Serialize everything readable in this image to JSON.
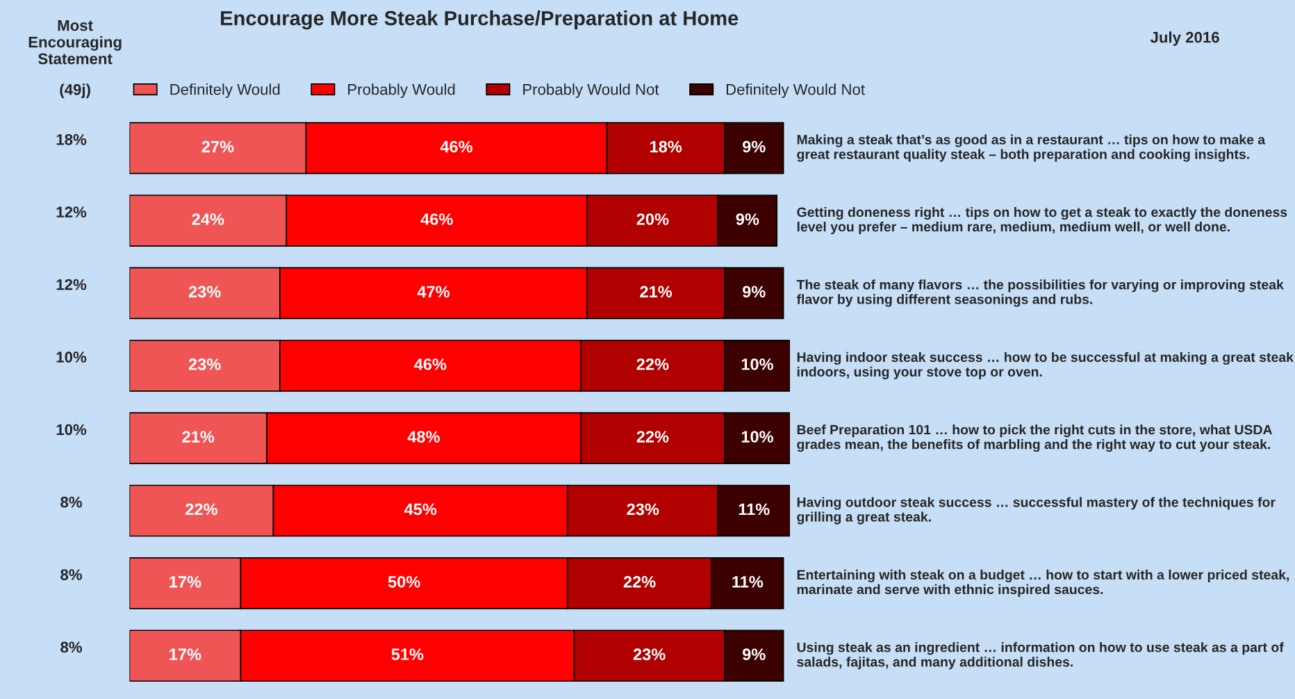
{
  "chart_data": {
    "type": "bar",
    "orientation": "horizontal",
    "stacked": true,
    "legend": "top",
    "xlim": [
      0,
      101
    ],
    "tick_labels": false,
    "title": "Encourage More Steak Purchase/Preparation at Home",
    "subtitle": "July 2016",
    "ylabel": "Most Encouraging Statement",
    "categories": [
      "Making a steak that’s as good as in a restaurant … tips on how to make a great restaurant quality steak – both preparation and cooking insights.",
      "Getting doneness right … tips on how to get a steak to exactly the doneness level you prefer – medium rare, medium, medium well, or well done.",
      "The steak of many flavors … the possibilities for varying or improving steak flavor by using different seasonings and rubs.",
      "Having indoor steak success … how to be successful at making a great steak indoors, using your stove top or oven.",
      "Beef Preparation 101 … how to pick the right cuts in the store, what USDA grades mean, the benefits of marbling and the right way to cut your steak.",
      "Having outdoor steak success … successful mastery of the techniques for grilling a great steak.",
      "Entertaining with steak on a budget … how to start with a lower priced steak, marinate and serve with ethnic inspired sauces.",
      "Using steak as an ingredient … information on how to use steak as a part of salads, fajitas, and many additional dishes."
    ],
    "series": [
      {
        "name": "Definitely Would",
        "color": "#f05555",
        "values": [
          27,
          24,
          23,
          23,
          21,
          22,
          17,
          17
        ],
        "value_labels": [
          "27%",
          "24%",
          "23%",
          "23%",
          "21%",
          "22%",
          "17%",
          "17%"
        ]
      },
      {
        "name": "Probably Would",
        "color": "#ff0000",
        "values": [
          46,
          46,
          47,
          46,
          48,
          45,
          50,
          51
        ],
        "value_labels": [
          "46%",
          "46%",
          "47%",
          "46%",
          "48%",
          "45%",
          "50%",
          "51%"
        ]
      },
      {
        "name": "Probably Would Not",
        "color": "#b00000",
        "values": [
          18,
          20,
          21,
          22,
          22,
          23,
          22,
          23
        ],
        "value_labels": [
          "18%",
          "20%",
          "21%",
          "22%",
          "22%",
          "23%",
          "22%",
          "23%"
        ]
      },
      {
        "name": "Definitely Would Not",
        "color": "#3c0000",
        "values": [
          9,
          9,
          9,
          10,
          10,
          11,
          11,
          9
        ],
        "value_labels": [
          "9%",
          "9%",
          "9%",
          "10%",
          "10%",
          "11%",
          "11%",
          "9%"
        ]
      }
    ],
    "annotations": [
      "(49j)",
      "18%",
      "12%",
      "12%",
      "10%",
      "10%",
      "8%",
      "8%",
      "8%"
    ]
  }
}
